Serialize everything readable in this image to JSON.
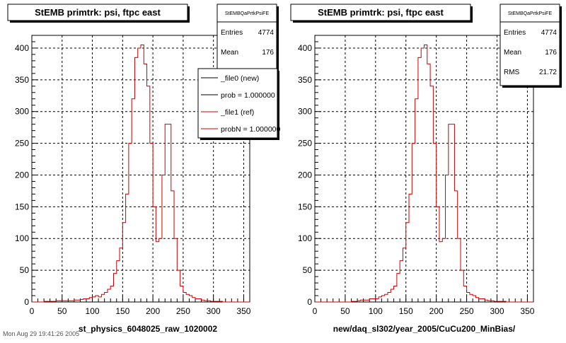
{
  "footer_note": "Mon Aug 29 19:41:26 2005",
  "chart_data": [
    {
      "type": "histogram",
      "title": "StEMB primtrk: psi, ftpc east",
      "xlabel": "st_physics_6048025_raw_1020002",
      "ylabel": "",
      "xlim": [
        0,
        360
      ],
      "ylim": [
        0,
        420
      ],
      "xticks": [
        0,
        50,
        100,
        150,
        200,
        250,
        300,
        350
      ],
      "yticks": [
        0,
        50,
        100,
        150,
        200,
        250,
        300,
        350,
        400
      ],
      "grid": true,
      "bin_width": 5,
      "x_start": 0,
      "stats": {
        "name": "StEMBQaPrtkPsiFE",
        "rows": [
          {
            "label": "Entries",
            "value": "4774"
          },
          {
            "label": "Mean",
            "value": "176"
          }
        ]
      },
      "legend": {
        "placement": "top-right",
        "entries": [
          {
            "label": "_file0 (new)",
            "color": "#000000"
          },
          {
            "label": "prob = 1.000000",
            "color": "#000000"
          },
          {
            "label": "_file1 (ref)",
            "color": "#cc0000"
          },
          {
            "label": "probN = 1.000000",
            "color": "#cc0000"
          }
        ]
      },
      "series": [
        {
          "color": "#cc0000",
          "values": [
            0,
            0,
            0,
            0,
            1,
            1,
            1,
            1,
            2,
            2,
            2,
            2,
            2,
            2,
            3,
            3,
            4,
            5,
            5,
            7,
            8,
            10,
            8,
            12,
            15,
            20,
            25,
            45,
            65,
            85,
            125,
            170,
            250,
            320,
            385,
            400,
            405,
            375,
            340,
            250,
            150,
            95,
            100,
            200,
            280,
            280,
            175,
            100,
            50,
            25,
            15,
            12,
            10,
            7,
            5,
            5,
            3,
            2,
            2,
            1,
            1,
            1,
            1,
            0,
            0,
            0,
            0,
            0,
            0,
            0,
            0,
            0
          ]
        }
      ]
    },
    {
      "type": "histogram",
      "title": "StEMB primtrk: psi, ftpc east",
      "xlabel": "new/daq_sl302/year_2005/CuCu200_MinBias/",
      "ylabel": "",
      "xlim": [
        0,
        360
      ],
      "ylim": [
        0,
        420
      ],
      "xticks": [
        0,
        50,
        100,
        150,
        200,
        250,
        300,
        350
      ],
      "yticks": [
        0,
        50,
        100,
        150,
        200,
        250,
        300,
        350,
        400
      ],
      "grid": true,
      "bin_width": 5,
      "x_start": 0,
      "stats": {
        "name": "StEMBQaPrtkPsiFE",
        "rows": [
          {
            "label": "Entries",
            "value": "4774"
          },
          {
            "label": "Mean",
            "value": "176"
          },
          {
            "label": "RMS",
            "value": "21.72"
          }
        ]
      },
      "series": [
        {
          "color": "#cc0000",
          "values": [
            0,
            0,
            0,
            0,
            0,
            0,
            0,
            0,
            0,
            0,
            0,
            0,
            1,
            1,
            2,
            3,
            3,
            3,
            5,
            5,
            5,
            8,
            10,
            12,
            15,
            20,
            25,
            45,
            65,
            85,
            125,
            170,
            250,
            320,
            385,
            400,
            405,
            375,
            340,
            250,
            150,
            95,
            100,
            200,
            280,
            280,
            175,
            100,
            50,
            25,
            15,
            12,
            10,
            7,
            5,
            5,
            3,
            2,
            2,
            1,
            1,
            1,
            1,
            0,
            0,
            0,
            0,
            0,
            0,
            0,
            0,
            0
          ]
        }
      ]
    }
  ]
}
